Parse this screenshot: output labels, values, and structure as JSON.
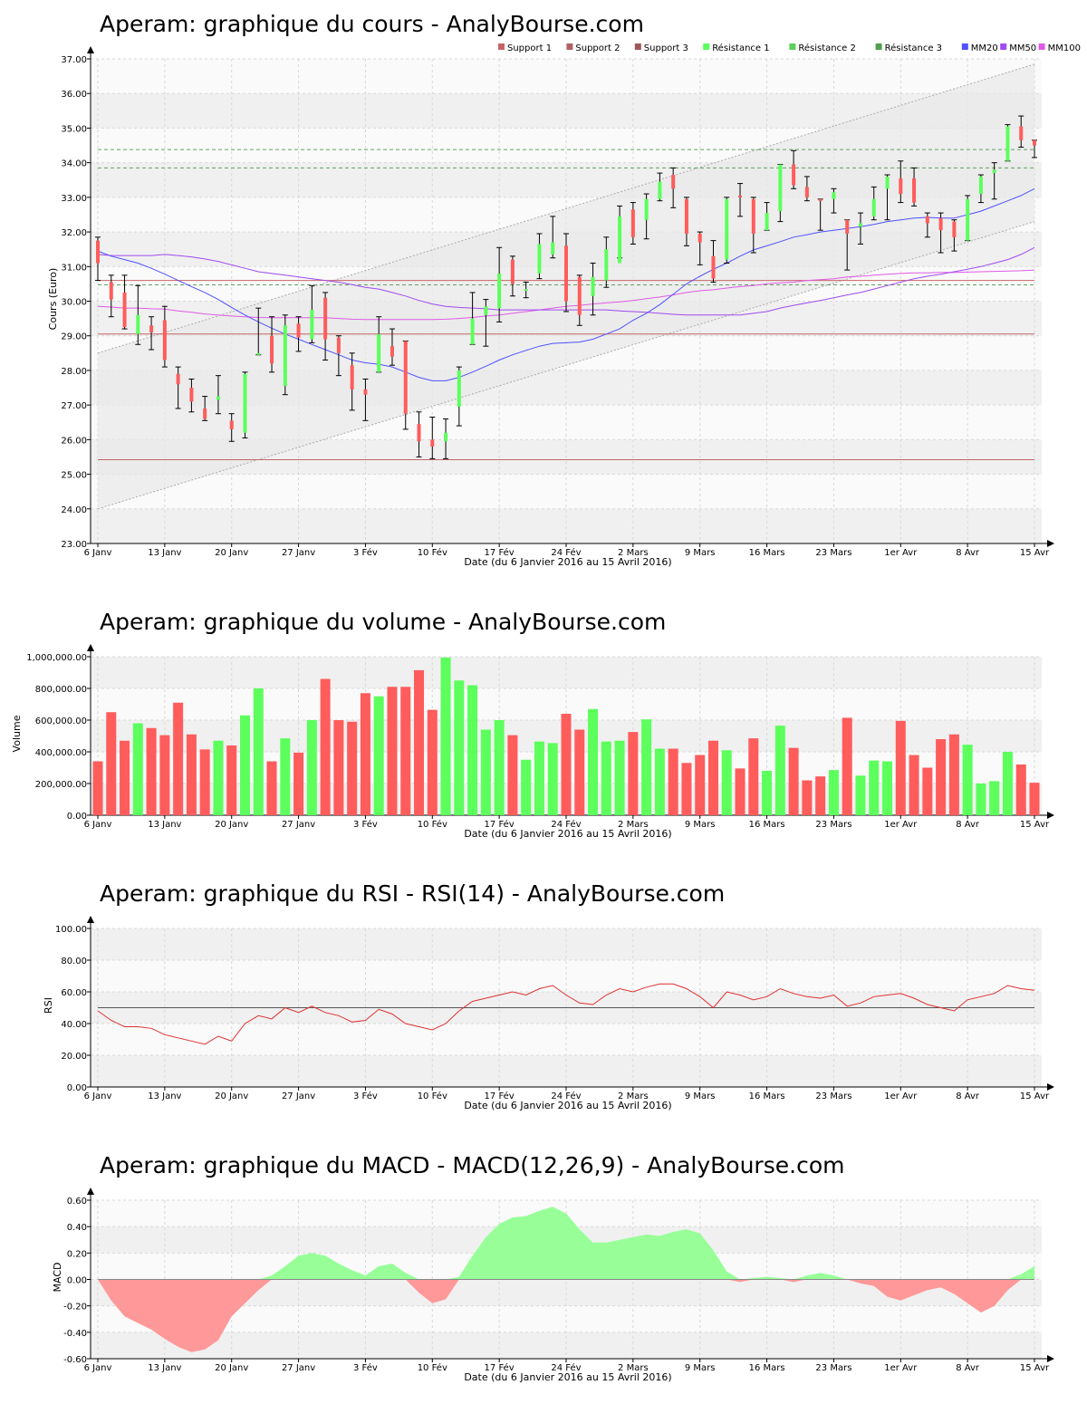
{
  "colors": {
    "up": "#5cff5c",
    "down": "#ff5c5c",
    "wick": "#000000",
    "mm20": "#5050ff",
    "mm50": "#a04af0",
    "mm100": "#e05ae8",
    "support": "#c86464",
    "resistance": "#64a064",
    "rsi": "#e03030",
    "macd_pos": "#98ff98",
    "macd_neg": "#ff9898",
    "band": "#f0f0f0",
    "channel": "#e8e8e8",
    "grid": "#d8d8d8"
  },
  "x_axis": {
    "ticks": [
      "6 Janv",
      "13 Janv",
      "20 Janv",
      "27 Janv",
      "3 Fév",
      "10 Fév",
      "17 Fév",
      "24 Fév",
      "2 Mars",
      "9 Mars",
      "16 Mars",
      "23 Mars",
      "1er Avr",
      "8 Avr",
      "15 Avr"
    ],
    "label": "Date (du 6 Janvier 2016 au 15 Avril 2016)"
  },
  "chart_data": [
    {
      "type": "candlestick",
      "title": "Aperam: graphique du cours - AnalyBourse.com",
      "ylabel": "Cours (Euro)",
      "ylim": [
        23,
        37
      ],
      "yticks": [
        "23.00",
        "24.00",
        "25.00",
        "26.00",
        "27.00",
        "28.00",
        "29.00",
        "30.00",
        "31.00",
        "32.00",
        "33.00",
        "34.00",
        "35.00",
        "36.00",
        "37.00"
      ],
      "legend": [
        "Support 1",
        "Support 2",
        "Support 3",
        "Résistance 1",
        "Résistance 2",
        "Résistance 3",
        "MM20",
        "MM50",
        "MM100"
      ],
      "legend_position": "top-right",
      "supports": [
        29.05,
        30.6,
        25.42
      ],
      "resistances": [
        33.85,
        34.38,
        30.47
      ],
      "channel": {
        "lower": [
          24.0,
          32.3
        ],
        "upper": [
          28.5,
          36.85
        ]
      },
      "candles": [
        [
          31.75,
          31.1,
          31.85,
          30.6
        ],
        [
          30.55,
          30.05,
          30.75,
          29.55
        ],
        [
          30.25,
          29.25,
          30.75,
          29.2
        ],
        [
          29.05,
          29.6,
          30.45,
          28.75
        ],
        [
          29.3,
          29.1,
          29.55,
          28.6
        ],
        [
          29.45,
          28.3,
          29.85,
          28.1
        ],
        [
          27.9,
          27.6,
          28.1,
          26.9
        ],
        [
          27.5,
          27.1,
          27.75,
          26.8
        ],
        [
          26.9,
          26.6,
          27.25,
          26.55
        ],
        [
          27.15,
          27.25,
          27.85,
          26.75
        ],
        [
          26.55,
          26.3,
          26.75,
          25.95
        ],
        [
          26.2,
          27.9,
          27.95,
          26.05
        ],
        [
          28.45,
          28.5,
          29.8,
          28.45
        ],
        [
          29.0,
          28.2,
          29.55,
          27.95
        ],
        [
          27.55,
          29.3,
          29.6,
          27.3
        ],
        [
          29.35,
          28.95,
          29.55,
          28.55
        ],
        [
          28.9,
          29.75,
          30.45,
          28.8
        ],
        [
          30.1,
          28.9,
          30.25,
          28.3
        ],
        [
          28.95,
          28.5,
          29.0,
          27.85
        ],
        [
          28.15,
          27.45,
          28.5,
          26.85
        ],
        [
          27.45,
          27.3,
          27.75,
          26.55
        ],
        [
          27.95,
          29.05,
          29.55,
          27.95
        ],
        [
          28.7,
          28.4,
          29.2,
          28.15
        ],
        [
          28.85,
          26.75,
          28.85,
          26.3
        ],
        [
          26.45,
          25.95,
          26.8,
          25.5
        ],
        [
          26.0,
          25.8,
          26.65,
          25.45
        ],
        [
          25.95,
          26.2,
          26.6,
          25.45
        ],
        [
          26.95,
          28.0,
          28.1,
          26.4
        ],
        [
          28.75,
          29.5,
          30.25,
          28.75
        ],
        [
          29.6,
          29.85,
          30.05,
          28.7
        ],
        [
          29.8,
          30.8,
          31.55,
          29.4
        ],
        [
          31.2,
          30.5,
          31.3,
          30.15
        ],
        [
          30.35,
          30.35,
          30.55,
          30.1
        ],
        [
          30.8,
          31.65,
          31.95,
          30.65
        ],
        [
          31.35,
          31.7,
          32.45,
          31.25
        ],
        [
          31.6,
          30.0,
          31.95,
          29.7
        ],
        [
          30.7,
          29.6,
          30.75,
          29.3
        ],
        [
          30.15,
          30.7,
          31.1,
          29.6
        ],
        [
          30.6,
          31.5,
          31.85,
          30.4
        ],
        [
          31.1,
          32.45,
          32.75,
          31.25
        ],
        [
          32.65,
          31.85,
          32.85,
          31.65
        ],
        [
          32.35,
          32.95,
          33.1,
          31.8
        ],
        [
          32.95,
          33.45,
          33.7,
          32.9
        ],
        [
          33.65,
          33.25,
          33.85,
          32.7
        ],
        [
          32.95,
          31.95,
          33.0,
          31.6
        ],
        [
          31.95,
          31.7,
          32.0,
          31.05
        ],
        [
          31.3,
          30.65,
          31.75,
          30.55
        ],
        [
          31.2,
          32.95,
          33.0,
          31.1
        ],
        [
          33.05,
          33.0,
          33.4,
          32.45
        ],
        [
          32.95,
          31.95,
          33.0,
          31.4
        ],
        [
          32.05,
          32.55,
          32.85,
          32.05
        ],
        [
          32.6,
          33.95,
          33.95,
          32.3
        ],
        [
          33.95,
          33.35,
          34.35,
          33.25
        ],
        [
          33.3,
          33.0,
          33.6,
          32.9
        ],
        [
          32.95,
          32.9,
          32.95,
          32.05
        ],
        [
          32.95,
          33.15,
          33.25,
          32.55
        ],
        [
          32.35,
          31.95,
          32.35,
          30.9
        ],
        [
          32.15,
          32.25,
          32.55,
          31.65
        ],
        [
          32.45,
          32.95,
          33.3,
          32.35
        ],
        [
          33.25,
          33.6,
          33.65,
          32.35
        ],
        [
          33.55,
          33.1,
          34.05,
          32.85
        ],
        [
          33.55,
          32.85,
          33.85,
          32.75
        ],
        [
          32.45,
          32.25,
          32.55,
          31.85
        ],
        [
          32.4,
          32.05,
          32.55,
          31.4
        ],
        [
          32.3,
          31.85,
          32.35,
          31.45
        ],
        [
          31.75,
          32.95,
          33.05,
          31.75
        ],
        [
          33.1,
          33.6,
          33.65,
          32.85
        ],
        [
          33.7,
          33.8,
          34.0,
          32.95
        ],
        [
          34.05,
          35.05,
          35.1,
          34.05
        ],
        [
          35.05,
          34.65,
          35.35,
          34.45
        ],
        [
          34.65,
          34.5,
          34.65,
          34.15
        ]
      ],
      "mm20": [
        31.45,
        31.3,
        31.2,
        31.1,
        30.95,
        30.78,
        30.6,
        30.42,
        30.25,
        30.05,
        29.82,
        29.6,
        29.4,
        29.22,
        29.05,
        28.9,
        28.75,
        28.6,
        28.45,
        28.3,
        28.22,
        28.18,
        28.1,
        27.95,
        27.8,
        27.7,
        27.7,
        27.8,
        27.95,
        28.12,
        28.3,
        28.45,
        28.58,
        28.7,
        28.78,
        28.8,
        28.82,
        28.9,
        29.05,
        29.2,
        29.45,
        29.65,
        29.9,
        30.2,
        30.5,
        30.72,
        30.92,
        31.1,
        31.3,
        31.48,
        31.6,
        31.72,
        31.85,
        31.92,
        32.0,
        32.05,
        32.1,
        32.15,
        32.22,
        32.3,
        32.35,
        32.4,
        32.42,
        32.4,
        32.4,
        32.5,
        32.6,
        32.75,
        32.9,
        33.05,
        33.25
      ],
      "mm50": [
        31.35,
        31.32,
        31.32,
        31.32,
        31.32,
        31.35,
        31.32,
        31.28,
        31.22,
        31.15,
        31.05,
        30.95,
        30.85,
        30.8,
        30.75,
        30.7,
        30.65,
        30.6,
        30.55,
        30.48,
        30.4,
        30.35,
        30.25,
        30.15,
        30.02,
        29.92,
        29.85,
        29.82,
        29.8,
        29.78,
        29.75,
        29.75,
        29.75,
        29.75,
        29.75,
        29.75,
        29.75,
        29.75,
        29.75,
        29.72,
        29.7,
        29.68,
        29.65,
        29.62,
        29.6,
        29.6,
        29.6,
        29.6,
        29.6,
        29.65,
        29.7,
        29.8,
        29.88,
        29.95,
        30.02,
        30.1,
        30.18,
        30.25,
        30.35,
        30.45,
        30.55,
        30.65,
        30.72,
        30.78,
        30.85,
        30.92,
        31.0,
        31.1,
        31.2,
        31.35,
        31.55
      ],
      "mm100": [
        29.85,
        29.83,
        29.8,
        29.8,
        29.78,
        29.77,
        29.72,
        29.68,
        29.63,
        29.6,
        29.57,
        29.55,
        29.53,
        29.52,
        29.52,
        29.52,
        29.52,
        29.52,
        29.5,
        29.48,
        29.47,
        29.47,
        29.47,
        29.47,
        29.47,
        29.47,
        29.48,
        29.5,
        29.53,
        29.57,
        29.6,
        29.65,
        29.7,
        29.75,
        29.8,
        29.85,
        29.88,
        29.92,
        29.95,
        29.98,
        30.02,
        30.07,
        30.12,
        30.18,
        30.25,
        30.3,
        30.33,
        30.38,
        30.42,
        30.45,
        30.5,
        30.53,
        30.55,
        30.6,
        30.62,
        30.65,
        30.7,
        30.72,
        30.75,
        30.78,
        30.8,
        30.82,
        30.82,
        30.83,
        30.83,
        30.84,
        30.85,
        30.86,
        30.87,
        30.88,
        30.9
      ]
    },
    {
      "type": "bar",
      "title": "Aperam: graphique du volume - AnalyBourse.com",
      "ylabel": "Volume",
      "ylim": [
        0,
        1000000
      ],
      "yticks": [
        "0.00",
        "200,000.00",
        "400,000.00",
        "600,000.00",
        "800,000.00",
        "1,000,000.00"
      ],
      "values": [
        340000,
        650000,
        470000,
        580000,
        550000,
        505000,
        710000,
        510000,
        415000,
        470000,
        440000,
        630000,
        800000,
        340000,
        485000,
        395000,
        600000,
        860000,
        600000,
        590000,
        770000,
        750000,
        810000,
        810000,
        915000,
        665000,
        995000,
        850000,
        820000,
        540000,
        600000,
        505000,
        350000,
        465000,
        455000,
        640000,
        540000,
        670000,
        465000,
        470000,
        525000,
        605000,
        420000,
        420000,
        330000,
        380000,
        470000,
        410000,
        295000,
        485000,
        280000,
        565000,
        425000,
        220000,
        245000,
        285000,
        615000,
        250000,
        345000,
        340000,
        595000,
        380000,
        300000,
        480000,
        510000,
        445000,
        200000,
        215000,
        400000,
        320000,
        205000
      ]
    },
    {
      "type": "line",
      "title": "Aperam: graphique du RSI - RSI(14) - AnalyBourse.com",
      "ylabel": "RSI",
      "ylim": [
        0,
        100
      ],
      "yticks": [
        "0.00",
        "20.00",
        "40.00",
        "60.00",
        "80.00",
        "100.00"
      ],
      "reference": 50,
      "values": [
        48,
        42,
        38,
        38,
        37,
        33,
        31,
        29,
        27,
        32,
        29,
        40,
        45,
        43,
        50,
        47,
        51,
        47,
        45,
        41,
        42,
        49,
        46,
        40,
        38,
        36,
        40,
        48,
        54,
        56,
        58,
        60,
        58,
        62,
        64,
        58,
        53,
        52,
        58,
        62,
        60,
        63,
        65,
        65,
        62,
        57,
        50,
        60,
        58,
        55,
        57,
        62,
        59,
        57,
        56,
        58,
        51,
        53,
        57,
        58,
        59,
        56,
        52,
        50,
        48,
        55,
        57,
        59,
        64,
        62,
        61
      ]
    },
    {
      "type": "area",
      "title": "Aperam: graphique du MACD - MACD(12,26,9) - AnalyBourse.com",
      "ylabel": "MACD",
      "ylim": [
        -0.6,
        0.6
      ],
      "yticks": [
        "-0.60",
        "-0.40",
        "-0.20",
        "0.00",
        "0.20",
        "0.40",
        "0.60"
      ],
      "values": [
        0.0,
        -0.16,
        -0.28,
        -0.33,
        -0.38,
        -0.45,
        -0.51,
        -0.55,
        -0.53,
        -0.46,
        -0.28,
        -0.18,
        -0.08,
        0.03,
        0.1,
        0.18,
        0.2,
        0.18,
        0.12,
        0.07,
        0.03,
        0.1,
        0.12,
        0.05,
        -0.1,
        -0.18,
        -0.15,
        0.02,
        0.18,
        0.32,
        0.42,
        0.47,
        0.48,
        0.52,
        0.55,
        0.5,
        0.38,
        0.28,
        0.28,
        0.3,
        0.32,
        0.34,
        0.33,
        0.36,
        0.38,
        0.35,
        0.22,
        0.06,
        -0.02,
        0.01,
        0.02,
        0.01,
        -0.02,
        0.03,
        0.05,
        0.03,
        0.0,
        -0.03,
        -0.05,
        -0.13,
        -0.16,
        -0.12,
        -0.08,
        -0.06,
        -0.11,
        -0.18,
        -0.25,
        -0.2,
        -0.08,
        0.04,
        0.1
      ]
    }
  ]
}
